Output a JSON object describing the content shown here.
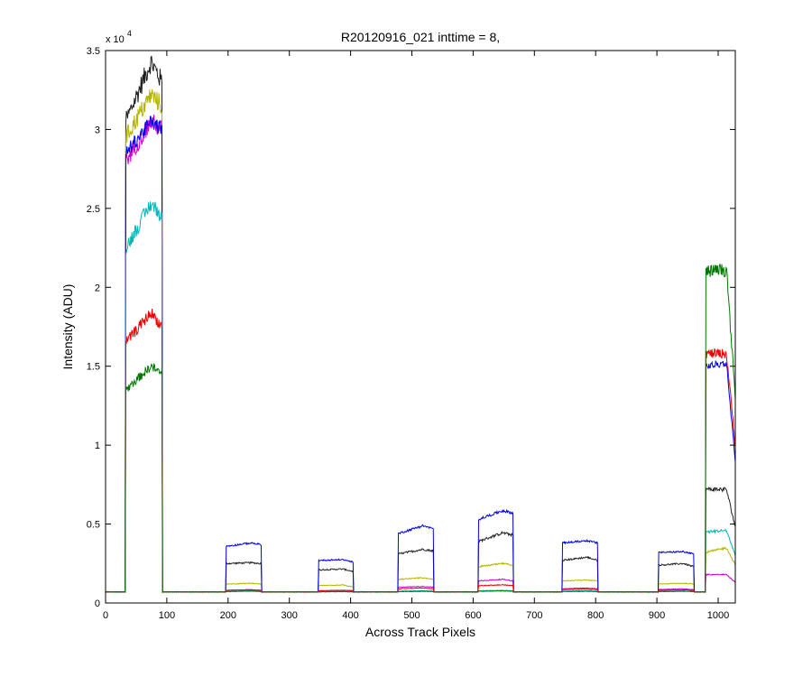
{
  "chart_data": {
    "type": "line",
    "title": "R20120916_021 inttime = 8,",
    "xlabel": "Across Track Pixels",
    "ylabel": "Intensity (ADU)",
    "y_multiplier_label": "x 10",
    "y_multiplier_exponent": "4",
    "xlim": [
      0,
      1028
    ],
    "ylim": [
      0,
      35000
    ],
    "xticks": [
      0,
      100,
      200,
      300,
      400,
      500,
      600,
      700,
      800,
      900,
      1000
    ],
    "xtick_labels": [
      "0",
      "100",
      "200",
      "300",
      "400",
      "500",
      "600",
      "700",
      "800",
      "900",
      "1000"
    ],
    "yticks": [
      0,
      5000,
      10000,
      15000,
      20000,
      25000,
      30000,
      35000
    ],
    "ytick_labels": [
      "0",
      "0.5",
      "1",
      "1.5",
      "2",
      "2.5",
      "3",
      "3.5"
    ],
    "grid": false,
    "baseline": 700,
    "series": [
      {
        "color": "#202020",
        "noise": 0.04,
        "segments": [
          {
            "x0": 33,
            "x1": 92,
            "ys": 30500,
            "ye": 33000,
            "yp": 34300
          },
          {
            "x0": 197,
            "x1": 254,
            "ys": 2500,
            "ye": 2500,
            "yp": 2550
          },
          {
            "x0": 348,
            "x1": 404,
            "ys": 2100,
            "ye": 2000,
            "yp": 2150
          },
          {
            "x0": 478,
            "x1": 535,
            "ys": 3100,
            "ye": 3300,
            "yp": 3400
          },
          {
            "x0": 609,
            "x1": 665,
            "ys": 3900,
            "ye": 4300,
            "yp": 4450
          },
          {
            "x0": 746,
            "x1": 803,
            "ys": 2700,
            "ye": 2700,
            "yp": 2900
          },
          {
            "x0": 903,
            "x1": 960,
            "ys": 2400,
            "ye": 2300,
            "yp": 2500
          },
          {
            "x0": 980,
            "x1": 1028,
            "ys": 7200,
            "ye": 4800,
            "yp": 7200
          }
        ]
      },
      {
        "color": "#b5b500",
        "noise": 0.04,
        "segments": [
          {
            "x0": 33,
            "x1": 92,
            "ys": 29500,
            "ye": 31500,
            "yp": 32200
          },
          {
            "x0": 197,
            "x1": 254,
            "ys": 1200,
            "ye": 1200,
            "yp": 1250
          },
          {
            "x0": 348,
            "x1": 404,
            "ys": 1100,
            "ye": 1000,
            "yp": 1150
          },
          {
            "x0": 478,
            "x1": 535,
            "ys": 1500,
            "ye": 1500,
            "yp": 1600
          },
          {
            "x0": 609,
            "x1": 665,
            "ys": 2300,
            "ye": 2400,
            "yp": 2500
          },
          {
            "x0": 746,
            "x1": 803,
            "ys": 1400,
            "ye": 1400,
            "yp": 1450
          },
          {
            "x0": 903,
            "x1": 960,
            "ys": 1200,
            "ye": 1200,
            "yp": 1250
          },
          {
            "x0": 980,
            "x1": 1028,
            "ys": 3200,
            "ye": 2400,
            "yp": 3500
          }
        ]
      },
      {
        "color": "#cc00cc",
        "noise": 0.04,
        "segments": [
          {
            "x0": 33,
            "x1": 92,
            "ys": 28000,
            "ye": 30000,
            "yp": 30500
          },
          {
            "x0": 197,
            "x1": 254,
            "ys": 800,
            "ye": 800,
            "yp": 850
          },
          {
            "x0": 348,
            "x1": 404,
            "ys": 750,
            "ye": 750,
            "yp": 800
          },
          {
            "x0": 478,
            "x1": 535,
            "ys": 1000,
            "ye": 1000,
            "yp": 1050
          },
          {
            "x0": 609,
            "x1": 665,
            "ys": 1400,
            "ye": 1400,
            "yp": 1500
          },
          {
            "x0": 746,
            "x1": 803,
            "ys": 900,
            "ye": 900,
            "yp": 950
          },
          {
            "x0": 903,
            "x1": 960,
            "ys": 850,
            "ye": 850,
            "yp": 900
          },
          {
            "x0": 980,
            "x1": 1028,
            "ys": 1800,
            "ye": 1300,
            "yp": 1800
          }
        ]
      },
      {
        "color": "#0000ee",
        "noise": 0.03,
        "segments": [
          {
            "x0": 33,
            "x1": 92,
            "ys": 28500,
            "ye": 30000,
            "yp": 30500
          },
          {
            "x0": 197,
            "x1": 254,
            "ys": 3600,
            "ye": 3700,
            "yp": 3800
          },
          {
            "x0": 348,
            "x1": 404,
            "ys": 2700,
            "ye": 2600,
            "yp": 2750
          },
          {
            "x0": 478,
            "x1": 535,
            "ys": 4400,
            "ye": 4700,
            "yp": 4900
          },
          {
            "x0": 609,
            "x1": 665,
            "ys": 5300,
            "ye": 5700,
            "yp": 5850
          },
          {
            "x0": 746,
            "x1": 803,
            "ys": 3800,
            "ye": 3800,
            "yp": 3950
          },
          {
            "x0": 903,
            "x1": 960,
            "ys": 3200,
            "ye": 3100,
            "yp": 3250
          },
          {
            "x0": 980,
            "x1": 1028,
            "ys": 15000,
            "ye": 9000,
            "yp": 15200
          }
        ]
      },
      {
        "color": "#00b5b5",
        "noise": 0.04,
        "segments": [
          {
            "x0": 33,
            "x1": 92,
            "ys": 22500,
            "ye": 24500,
            "yp": 25300
          },
          {
            "x0": 197,
            "x1": 254,
            "ys": 750,
            "ye": 750,
            "yp": 780
          },
          {
            "x0": 348,
            "x1": 404,
            "ys": 720,
            "ye": 720,
            "yp": 750
          },
          {
            "x0": 478,
            "x1": 535,
            "ys": 750,
            "ye": 750,
            "yp": 780
          },
          {
            "x0": 609,
            "x1": 665,
            "ys": 780,
            "ye": 780,
            "yp": 800
          },
          {
            "x0": 746,
            "x1": 803,
            "ys": 750,
            "ye": 750,
            "yp": 780
          },
          {
            "x0": 903,
            "x1": 960,
            "ys": 740,
            "ye": 740,
            "yp": 760
          },
          {
            "x0": 980,
            "x1": 1028,
            "ys": 4500,
            "ye": 3000,
            "yp": 4600
          }
        ]
      },
      {
        "color": "#ee0000",
        "noise": 0.04,
        "segments": [
          {
            "x0": 33,
            "x1": 92,
            "ys": 16500,
            "ye": 17500,
            "yp": 18400
          },
          {
            "x0": 197,
            "x1": 254,
            "ys": 800,
            "ye": 800,
            "yp": 830
          },
          {
            "x0": 348,
            "x1": 404,
            "ys": 780,
            "ye": 780,
            "yp": 800
          },
          {
            "x0": 478,
            "x1": 535,
            "ys": 900,
            "ye": 900,
            "yp": 950
          },
          {
            "x0": 609,
            "x1": 665,
            "ys": 1100,
            "ye": 1100,
            "yp": 1150
          },
          {
            "x0": 746,
            "x1": 803,
            "ys": 850,
            "ye": 850,
            "yp": 880
          },
          {
            "x0": 903,
            "x1": 960,
            "ys": 800,
            "ye": 800,
            "yp": 830
          },
          {
            "x0": 980,
            "x1": 1028,
            "ys": 15800,
            "ye": 10000,
            "yp": 15800
          }
        ]
      },
      {
        "color": "#007700",
        "noise": 0.04,
        "segments": [
          {
            "x0": 33,
            "x1": 92,
            "ys": 13500,
            "ye": 14500,
            "yp": 15000
          },
          {
            "x0": 197,
            "x1": 254,
            "ys": 720,
            "ye": 720,
            "yp": 750
          },
          {
            "x0": 348,
            "x1": 404,
            "ys": 700,
            "ye": 700,
            "yp": 720
          },
          {
            "x0": 478,
            "x1": 535,
            "ys": 720,
            "ye": 720,
            "yp": 740
          },
          {
            "x0": 609,
            "x1": 665,
            "ys": 740,
            "ye": 740,
            "yp": 760
          },
          {
            "x0": 746,
            "x1": 803,
            "ys": 720,
            "ye": 720,
            "yp": 740
          },
          {
            "x0": 903,
            "x1": 960,
            "ys": 720,
            "ye": 720,
            "yp": 740
          },
          {
            "x0": 980,
            "x1": 1028,
            "ys": 21000,
            "ye": 13000,
            "yp": 21100
          }
        ]
      }
    ]
  }
}
